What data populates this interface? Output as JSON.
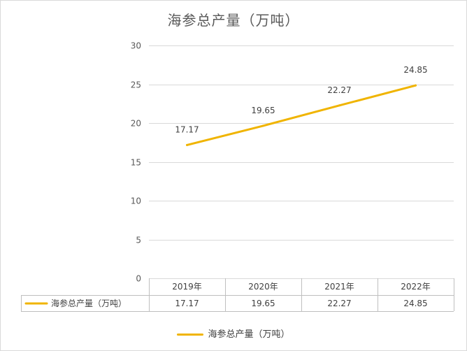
{
  "chart_data": {
    "type": "line",
    "title": "海参总产量（万吨）",
    "categories": [
      "2019年",
      "2020年",
      "2021年",
      "2022年"
    ],
    "series": [
      {
        "name": "海参总产量（万吨）",
        "values": [
          17.17,
          19.65,
          22.27,
          24.85
        ],
        "color": "#f0b400"
      }
    ],
    "data_labels": [
      "17.17",
      "19.65",
      "22.27",
      "24.85"
    ],
    "yticks": [
      "0",
      "5",
      "10",
      "15",
      "20",
      "25",
      "30"
    ],
    "ylim": [
      0,
      30
    ],
    "grid": true,
    "legend": "bottom",
    "data_table": true
  }
}
